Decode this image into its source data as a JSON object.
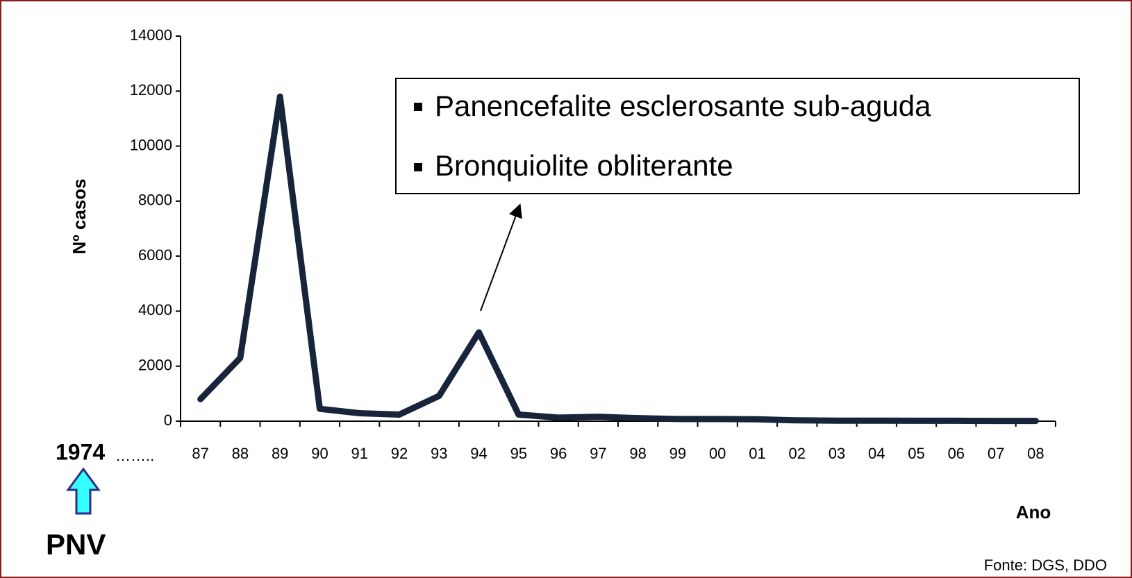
{
  "chart_data": {
    "type": "line",
    "ylabel": "Nº casos",
    "xlabel": "Ano",
    "categories": [
      "87",
      "88",
      "89",
      "90",
      "91",
      "92",
      "93",
      "94",
      "95",
      "96",
      "97",
      "98",
      "99",
      "00",
      "01",
      "02",
      "03",
      "04",
      "05",
      "06",
      "07",
      "08"
    ],
    "series": [
      {
        "name": "Nº casos",
        "color": "#17243a",
        "values": [
          800,
          2300,
          11800,
          450,
          290,
          240,
          920,
          3230,
          240,
          130,
          160,
          110,
          80,
          80,
          70,
          30,
          20,
          20,
          15,
          15,
          10,
          10
        ]
      }
    ],
    "ylim": [
      0,
      14000
    ],
    "yticks": [
      0,
      2000,
      4000,
      6000,
      8000,
      10000,
      12000,
      14000
    ],
    "annotations": [
      "Panencefalite esclerosante sub-aguda",
      "Bronquiolite obliterante"
    ],
    "start_year": "1974",
    "ellipsis": "……..",
    "program": "PNV",
    "source": "Fonte: DGS, DDO"
  }
}
